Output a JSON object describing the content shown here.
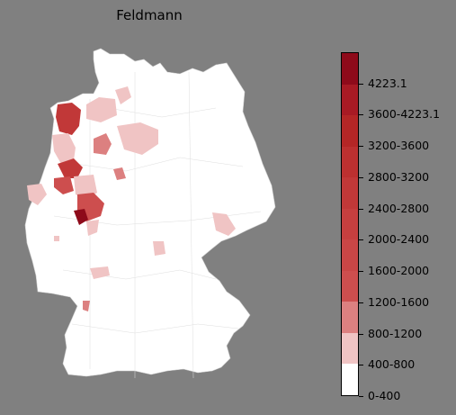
{
  "title": "Feldmann",
  "legend": {
    "bins": [
      {
        "label": "0-400",
        "color": "#ffffff"
      },
      {
        "label": "400-800",
        "color": "#f0c4c4"
      },
      {
        "label": "800-1200",
        "color": "#dc8080"
      },
      {
        "label": "1200-1600",
        "color": "#cd4e4e"
      },
      {
        "label": "1600-2000",
        "color": "#c94646"
      },
      {
        "label": "2000-2400",
        "color": "#c63f3f"
      },
      {
        "label": "2400-2800",
        "color": "#c13838"
      },
      {
        "label": "2800-3200",
        "color": "#bc3030"
      },
      {
        "label": "3200-3600",
        "color": "#b42626"
      },
      {
        "label": "3600-4223.1",
        "color": "#a81a24"
      },
      {
        "label": "4223.1",
        "color": "#8e0a1a"
      }
    ]
  },
  "colors": {
    "background": "#808080",
    "land": "#ffffff",
    "border": "#d9d9d9"
  }
}
